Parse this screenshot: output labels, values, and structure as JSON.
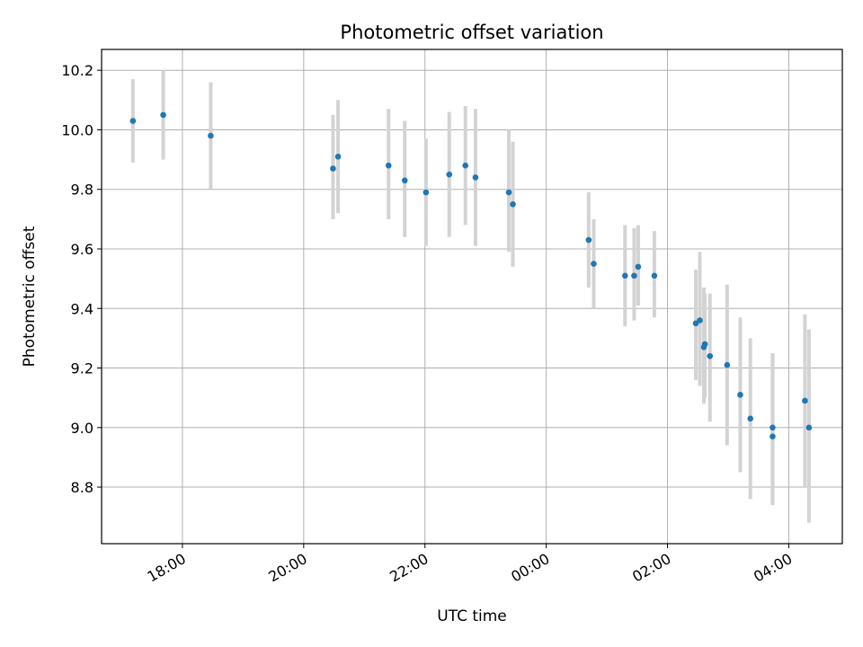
{
  "chart_data": {
    "type": "scatter",
    "title": "Photometric offset variation",
    "xlabel": "UTC time",
    "ylabel": "Photometric offset",
    "x_unit": "UTC time (HH:MM), points span one night starting on the evening",
    "xlim": [
      "16:40",
      "04:53"
    ],
    "ylim": [
      8.61,
      10.27
    ],
    "x_ticks": [
      "18:00",
      "20:00",
      "22:00",
      "00:00",
      "02:00",
      "04:00"
    ],
    "y_ticks": [
      8.8,
      9.0,
      9.2,
      9.4,
      9.6,
      9.8,
      10.0,
      10.2
    ],
    "grid": true,
    "marker_color": "#1f77b4",
    "errorbar_color": "#d3d3d3",
    "points": [
      {
        "t": "17:11",
        "y": 10.03,
        "lo": 9.89,
        "hi": 10.17
      },
      {
        "t": "17:41",
        "y": 10.05,
        "lo": 9.9,
        "hi": 10.2
      },
      {
        "t": "18:28",
        "y": 9.98,
        "lo": 9.8,
        "hi": 10.16
      },
      {
        "t": "20:29",
        "y": 9.87,
        "lo": 9.7,
        "hi": 10.05
      },
      {
        "t": "20:34",
        "y": 9.91,
        "lo": 9.72,
        "hi": 10.1
      },
      {
        "t": "21:24",
        "y": 9.88,
        "lo": 9.7,
        "hi": 10.07
      },
      {
        "t": "21:40",
        "y": 9.83,
        "lo": 9.64,
        "hi": 10.03
      },
      {
        "t": "22:01",
        "y": 9.79,
        "lo": 9.61,
        "hi": 9.97
      },
      {
        "t": "22:24",
        "y": 9.85,
        "lo": 9.64,
        "hi": 10.06
      },
      {
        "t": "22:40",
        "y": 9.88,
        "lo": 9.68,
        "hi": 10.08
      },
      {
        "t": "22:50",
        "y": 9.84,
        "lo": 9.61,
        "hi": 10.07
      },
      {
        "t": "23:23",
        "y": 9.79,
        "lo": 9.59,
        "hi": 10.0
      },
      {
        "t": "23:27",
        "y": 9.75,
        "lo": 9.54,
        "hi": 9.96
      },
      {
        "t": "00:42",
        "y": 9.63,
        "lo": 9.47,
        "hi": 9.79
      },
      {
        "t": "00:47",
        "y": 9.55,
        "lo": 9.4,
        "hi": 9.7
      },
      {
        "t": "01:18",
        "y": 9.51,
        "lo": 9.34,
        "hi": 9.68
      },
      {
        "t": "01:27",
        "y": 9.51,
        "lo": 9.36,
        "hi": 9.67
      },
      {
        "t": "01:31",
        "y": 9.54,
        "lo": 9.41,
        "hi": 9.68
      },
      {
        "t": "01:47",
        "y": 9.51,
        "lo": 9.37,
        "hi": 9.66
      },
      {
        "t": "02:28",
        "y": 9.35,
        "lo": 9.16,
        "hi": 9.53
      },
      {
        "t": "02:32",
        "y": 9.36,
        "lo": 9.14,
        "hi": 9.59
      },
      {
        "t": "02:36",
        "y": 9.27,
        "lo": 9.08,
        "hi": 9.47
      },
      {
        "t": "02:37",
        "y": 9.28,
        "lo": 9.1,
        "hi": 9.45
      },
      {
        "t": "02:42",
        "y": 9.24,
        "lo": 9.02,
        "hi": 9.45
      },
      {
        "t": "02:59",
        "y": 9.21,
        "lo": 8.94,
        "hi": 9.48
      },
      {
        "t": "03:12",
        "y": 9.11,
        "lo": 8.85,
        "hi": 9.37
      },
      {
        "t": "03:22",
        "y": 9.03,
        "lo": 8.76,
        "hi": 9.3
      },
      {
        "t": "03:44",
        "y": 8.97,
        "lo": 8.74,
        "hi": 9.25
      },
      {
        "t": "03:44",
        "y": 9.0,
        "lo": 8.74,
        "hi": 9.25
      },
      {
        "t": "04:16",
        "y": 9.09,
        "lo": 8.8,
        "hi": 9.38
      },
      {
        "t": "04:20",
        "y": 9.0,
        "lo": 8.68,
        "hi": 9.33
      }
    ]
  }
}
